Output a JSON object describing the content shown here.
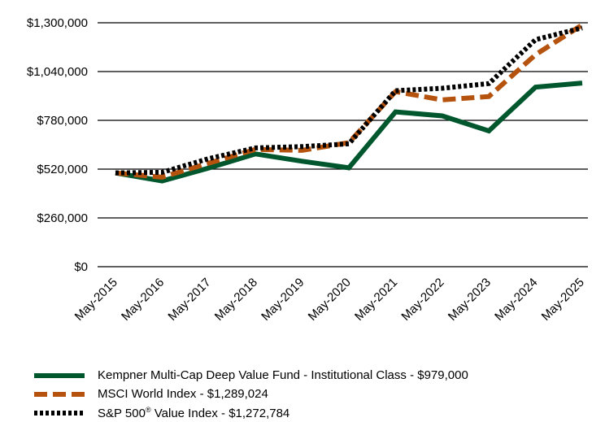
{
  "chart_data": {
    "type": "line",
    "categories": [
      "May-2015",
      "May-2016",
      "May-2017",
      "May-2018",
      "May-2019",
      "May-2020",
      "May-2021",
      "May-2022",
      "May-2023",
      "May-2024",
      "May-2025"
    ],
    "y_ticks": [
      "$0",
      "$260,000",
      "$520,000",
      "$780,000",
      "$1,040,000",
      "$1,300,000"
    ],
    "ylim": [
      0,
      1300000
    ],
    "grid": "horizontal",
    "legend_position": "bottom",
    "series": [
      {
        "name": "Kempner Multi-Cap Deep Value Fund - Institutional Class - $979,000",
        "color": "#00572e",
        "style": "solid",
        "values": [
          500000,
          457000,
          526000,
          601000,
          562000,
          527000,
          825000,
          804000,
          724000,
          957000,
          979000
        ]
      },
      {
        "name": "MSCI World Index - $1,289,024",
        "color": "#b5530e",
        "style": "dashed",
        "values": [
          500000,
          477000,
          552000,
          625000,
          620000,
          661000,
          933000,
          889000,
          907000,
          1130000,
          1289024
        ]
      },
      {
        "name": "S&P 500® Value Index - $1,272,784",
        "color": "#000000",
        "style": "dotted",
        "values": [
          500000,
          503000,
          576000,
          633000,
          640000,
          655000,
          938000,
          951000,
          976000,
          1210000,
          1272784
        ]
      }
    ]
  },
  "legend": {
    "items": [
      {
        "label_main": "Kempner Multi-Cap Deep Value Fund - Institutional Class - $979,000",
        "label_sup": "",
        "label_tail": ""
      },
      {
        "label_main": "MSCI World Index - $1,289,024",
        "label_sup": "",
        "label_tail": ""
      },
      {
        "label_main": "S&P 500",
        "label_sup": "®",
        "label_tail": " Value Index - $1,272,784"
      }
    ]
  }
}
